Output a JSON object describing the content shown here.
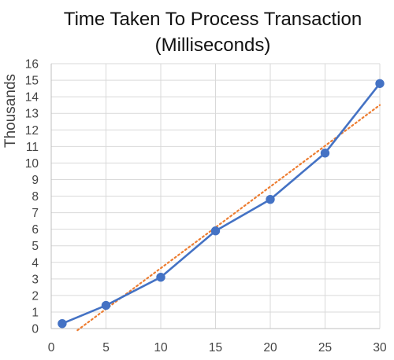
{
  "chart_data": {
    "type": "line",
    "title_line1": "Time Taken To Process Transaction",
    "title_line2": "(Milliseconds)",
    "xlabel": "",
    "ylabel": "Thousands",
    "xlim": [
      0,
      30
    ],
    "ylim": [
      0,
      16
    ],
    "x_ticks": [
      "0",
      "5",
      "10",
      "15",
      "20",
      "25",
      "30"
    ],
    "y_ticks": [
      "0",
      "1",
      "2",
      "3",
      "4",
      "5",
      "6",
      "7",
      "8",
      "9",
      "10",
      "11",
      "12",
      "13",
      "14",
      "15",
      "16"
    ],
    "grid": true,
    "legend": "none",
    "series": [
      {
        "x": [
          1,
          5,
          10,
          15,
          20,
          25,
          30
        ],
        "values": [
          0.3,
          1.4,
          3.1,
          5.9,
          7.8,
          10.6,
          14.8
        ],
        "color": "#4472C4",
        "marker": "circle"
      }
    ],
    "trendline": {
      "kind": "linear",
      "style": "dotted",
      "color": "#ED7D31",
      "x": [
        2.4,
        30
      ],
      "values": [
        -0.1,
        13.5
      ]
    }
  }
}
